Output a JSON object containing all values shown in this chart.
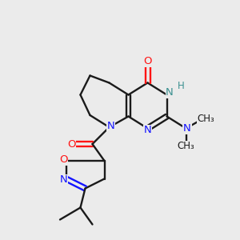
{
  "background_color": "#ebebeb",
  "bond_color": "#1a1a1a",
  "nitrogen_color": "#1414ff",
  "oxygen_color": "#ff1414",
  "teal_color": "#3a9090",
  "figsize": [
    3.0,
    3.0
  ],
  "dpi": 100,
  "xlim": [
    0,
    10
  ],
  "ylim": [
    0,
    10
  ],
  "bond_lw": 1.7,
  "label_fs": 9.5,
  "small_fs": 8.5
}
